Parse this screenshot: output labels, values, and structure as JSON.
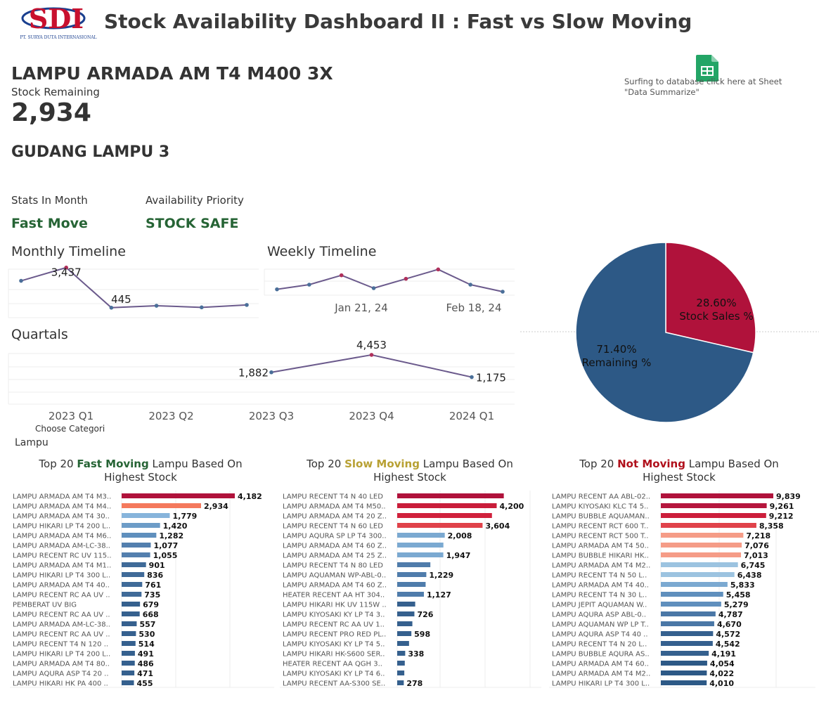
{
  "header": {
    "title": "Stock Availability Dashboard II : Fast vs Slow Moving",
    "logo_text": "SDI",
    "logo_subtext": "PT. SURYA DUTA INTERNASIONAL"
  },
  "product": {
    "name": "LAMPU ARMADA AM T4 M400 3X",
    "stock_label": "Stock Remaining",
    "stock_value": "2,934",
    "warehouse": "GUDANG LAMPU 3"
  },
  "database_link": {
    "text": "Surfing to database click here at Sheet \"Data Summarize\"",
    "icon": "google-sheets-icon"
  },
  "stats": {
    "stats_label": "Stats In Month",
    "stats_value": "Fast Move",
    "priority_label": "Availability Priority",
    "priority_value": "STOCK SAFE"
  },
  "sections": {
    "monthly": "Monthly Timeline",
    "weekly": "Weekly Timeline",
    "quartals": "Quartals"
  },
  "filter": {
    "label": "Choose Categori",
    "value": "Lampu"
  },
  "top_titles": {
    "fast": {
      "prefix": "Top 20 ",
      "highlight": "Fast Moving",
      "suffix": " Lampu Based On Highest Stock"
    },
    "slow": {
      "prefix": "Top 20 ",
      "highlight": "Slow Moving",
      "suffix": " Lampu Based On Highest Stock"
    },
    "not": {
      "prefix": "Top 20 ",
      "highlight": "Not Moving",
      "suffix": "  Lampu Based On Highest Stock"
    }
  },
  "colors": {
    "accent_green": "#266435",
    "slow_gold": "#b8a134",
    "not_red": "#b0101b",
    "pie_blue": "#2d5986",
    "pie_red": "#b0123b"
  },
  "chart_data": [
    {
      "id": "monthly",
      "type": "line",
      "title": "Monthly Timeline",
      "values": [
        2450,
        3437,
        445,
        590,
        470,
        650
      ],
      "labels": [
        null,
        "3,437",
        "445",
        null,
        null,
        null
      ],
      "ylim": [
        -300,
        4000
      ],
      "colors": [
        "#4a6f99",
        "#b0305b",
        "#4a6f99",
        "#4a6f99",
        "#4a6f99",
        "#4a6f99"
      ]
    },
    {
      "id": "weekly",
      "type": "line",
      "title": "Weekly Timeline",
      "x_ticks": [
        "Jan 21, 24",
        "Feb 18, 24"
      ],
      "values": [
        1350,
        1550,
        1950,
        1400,
        1800,
        2200,
        1550,
        1250
      ],
      "ylim": [
        800,
        2600
      ],
      "colors": [
        "#4a6f99",
        "#4a6f99",
        "#b0305b",
        "#4a6f99",
        "#b0305b",
        "#b0305b",
        "#4a6f99",
        "#4a6f99"
      ]
    },
    {
      "id": "quartals",
      "type": "line",
      "title": "Quartals",
      "categories": [
        "2023 Q1",
        "2023 Q2",
        "2023 Q3",
        "2023 Q4",
        "2024 Q1"
      ],
      "values": [
        null,
        null,
        1882,
        4453,
        1175
      ],
      "labels": [
        null,
        null,
        "1,882",
        "4,453",
        "1,175"
      ],
      "ylim": [
        -2500,
        6000
      ],
      "colors": [
        "#4a6f99",
        "#4a6f99",
        "#4a6f99",
        "#b0305b",
        "#4a6f99"
      ]
    },
    {
      "id": "pie",
      "type": "pie",
      "slices": [
        {
          "name": "Stock Sales %",
          "value": 28.6,
          "label": "28.60%",
          "color": "#b0123b"
        },
        {
          "name": "Remaining %",
          "value": 71.4,
          "label": "71.40%",
          "color": "#2d5986"
        }
      ]
    },
    {
      "id": "fast",
      "type": "bar",
      "orientation": "horizontal",
      "xlim": [
        0,
        4182
      ],
      "categories": [
        "LAMPU ARMADA AM T4 M3..",
        "LAMPU ARMADA AM T4 M4..",
        "LAMPU ARMADA AM T4 30..",
        "LAMPU HIKARI LP T4 200 L..",
        "LAMPU ARMADA AM T4 M6..",
        "LAMPU ARMADA AM-LC-38..",
        "LAMPU RECENT RC UV 115..",
        "LAMPU ARMADA AM T4 M1..",
        "LAMPU HIKARI LP T4 300 L..",
        "LAMPU ARMADA AM T4 40..",
        "LAMPU RECENT RC AA UV ..",
        "PEMBERAT UV BIG",
        "LAMPU RECENT RC AA UV ..",
        "LAMPU ARMADA AM-LC-38..",
        "LAMPU RECENT RC AA UV ..",
        "LAMPU RECENT T4 N 120 ..",
        "LAMPU HIKARI LP T4 200 L..",
        "LAMPU ARMADA AM T4 80..",
        "LAMPU AQURA ASP T4 20 ..",
        "LAMPU HIKARI HK PA 400 .."
      ],
      "values": [
        4182,
        2934,
        1779,
        1420,
        1282,
        1077,
        1055,
        901,
        836,
        761,
        735,
        679,
        668,
        557,
        530,
        514,
        491,
        486,
        471,
        455
      ],
      "value_labels": [
        "4,182",
        "2,934",
        "1,779",
        "1,420",
        "1,282",
        "1,077",
        "1,055",
        "901",
        "836",
        "761",
        "735",
        "679",
        "668",
        "557",
        "530",
        "514",
        "491",
        "486",
        "471",
        "455"
      ],
      "colors": [
        "#b0123b",
        "#f4795d",
        "#87b4db",
        "#6d9cc7",
        "#5f8fbd",
        "#537fae",
        "#537fae",
        "#3f6a98",
        "#3f6a98",
        "#3f6a98",
        "#3f6a98",
        "#35608e",
        "#35608e",
        "#35608e",
        "#35608e",
        "#35608e",
        "#35608e",
        "#35608e",
        "#35608e",
        "#35608e"
      ]
    },
    {
      "id": "slow",
      "type": "bar",
      "orientation": "horizontal",
      "xlim": [
        0,
        4600
      ],
      "categories": [
        "LAMPU RECENT T4 N 40 LED",
        "LAMPU ARMADA AM T4 M50..",
        "LAMPU ARMADA AM T4 20 Z..",
        "LAMPU RECENT T4 N 60 LED",
        "LAMPU AQURA SP LP T4 300..",
        "LAMPU ARMADA AM T4 60 Z..",
        "LAMPU ARMADA AM T4 25 Z..",
        "LAMPU RECENT T4 N 80 LED",
        "LAMPU AQUAMAN WP-ABL-0..",
        "LAMPU ARMADA AM T4 60 Z..",
        "HEATER RECENT AA HT 304..",
        "LAMPU HIKARI HK UV 115W ..",
        "LAMPU KIYOSAKI KY LP T4 3..",
        "LAMPU RECENT RC AA UV 1..",
        "LAMPU RECENT PRO RED PL..",
        "LAMPU KIYOSAKI KY LP T4 5..",
        "LAMPU HIKARI HK-S600 SER..",
        "HEATER RECENT AA QGH 3..",
        "LAMPU KIYOSAKI KY LP T4 6..",
        "LAMPU RECENT AA-S300 SE.."
      ],
      "values": [
        4500,
        4200,
        4000,
        3604,
        2008,
        1950,
        1947,
        1400,
        1229,
        1200,
        1127,
        760,
        726,
        640,
        598,
        500,
        338,
        320,
        300,
        278
      ],
      "value_labels": [
        "",
        "4,200",
        "",
        "3,604",
        "2,008",
        "",
        "1,947",
        "",
        "1,229",
        "",
        "1,127",
        "",
        "726",
        "",
        "598",
        "",
        "338",
        "",
        "",
        "278"
      ],
      "colors": [
        "#b0123b",
        "#c91d3a",
        "#d0213c",
        "#e0424a",
        "#7ba9d1",
        "#7ba9d1",
        "#7ba9d1",
        "#4f7cab",
        "#4f7cab",
        "#4f7cab",
        "#4f7cab",
        "#35608e",
        "#35608e",
        "#35608e",
        "#35608e",
        "#35608e",
        "#35608e",
        "#35608e",
        "#35608e",
        "#35608e"
      ]
    },
    {
      "id": "not",
      "type": "bar",
      "orientation": "horizontal",
      "xlim": [
        0,
        9839
      ],
      "categories": [
        "LAMPU RECENT AA ABL-02..",
        "LAMPU KIYOSAKI KLC T4 5..",
        "LAMPU BUBBLE AQUAMAN..",
        "LAMPU RECENT RCT 600 T..",
        "LAMPU RECENT RCT 500 T..",
        "LAMPU ARMADA AM T4 50..",
        "LAMPU BUBBLE HIKARI HK..",
        "LAMPU ARMADA AM T4 M2..",
        "LAMPU RECENT T4 N 50 L..",
        "LAMPU ARMADA AM T4 40..",
        "LAMPU RECENT T4 N 30 L..",
        "LAMPU JEPIT AQUAMAN W..",
        "LAMPU AQURA ASP ABL-0..",
        "LAMPU AQUAMAN WP LP T..",
        "LAMPU AQURA ASP T4 40 ..",
        "LAMPU RECENT T4 N 20 L..",
        "LAMPU BUBBLE AQURA AS..",
        "LAMPU ARMADA AM T4 60..",
        "LAMPU ARMADA AM T4 M2..",
        "LAMPU HIKARI LP T4 300 L.."
      ],
      "values": [
        9839,
        9261,
        9212,
        8358,
        7218,
        7076,
        7013,
        6745,
        6438,
        5833,
        5458,
        5279,
        4787,
        4670,
        4572,
        4542,
        4191,
        4054,
        4022,
        4010
      ],
      "value_labels": [
        "9,839",
        "9,261",
        "9,212",
        "8,358",
        "7,218",
        "7,076",
        "7,013",
        "6,745",
        "6,438",
        "5,833",
        "5,458",
        "5,279",
        "4,787",
        "4,670",
        "4,572",
        "4,542",
        "4,191",
        "4,054",
        "4,022",
        "4,010"
      ],
      "colors": [
        "#b0123b",
        "#b5163d",
        "#cc1e3b",
        "#e0424a",
        "#f59c87",
        "#f59c87",
        "#f59c87",
        "#9cc3e0",
        "#9cc3e0",
        "#7ba9d1",
        "#5f8fbd",
        "#5f8fbd",
        "#4a77a6",
        "#4a77a6",
        "#35608e",
        "#35608e",
        "#35608e",
        "#2d5986",
        "#2d5986",
        "#2d5986"
      ]
    }
  ]
}
